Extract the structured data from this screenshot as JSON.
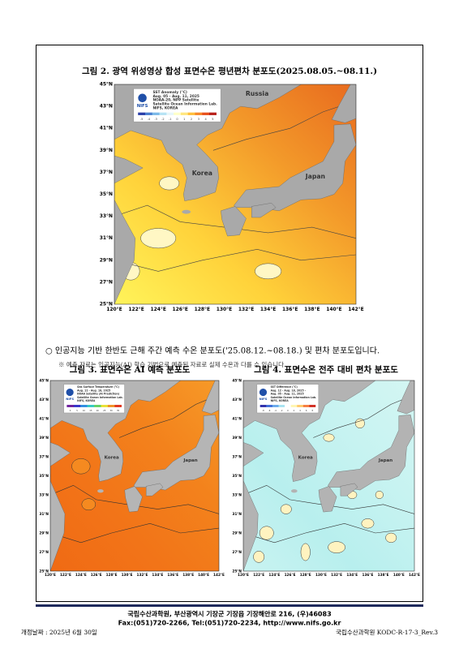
{
  "figure2": {
    "caption": "그림 2. 광역 위성영상 합성 표면수온 평년편차 분포도(2025.08.05.~08.11.)",
    "map": {
      "legend": [
        "SST Anomaly (°C)",
        "Aug. 05 - Aug. 11, 2025",
        "NOAA-20, NPP Satellite",
        "Satellite Ocean Information Lab.",
        "NIFS, KOREA"
      ],
      "logo": "NIFS",
      "scale": [
        "-5",
        "-4",
        "-3",
        "-2",
        "-1",
        "0",
        "1",
        "2",
        "3",
        "4",
        "5"
      ],
      "lat_labels": [
        "45°N",
        "43°N",
        "41°N",
        "39°N",
        "37°N",
        "35°N",
        "33°N",
        "31°N",
        "29°N",
        "27°N",
        "25°N"
      ],
      "lon_labels": [
        "120°E",
        "122°E",
        "124°E",
        "126°E",
        "128°E",
        "130°E",
        "132°E",
        "134°E",
        "136°E",
        "138°E",
        "140°E",
        "142°E"
      ],
      "places": [
        "Russia",
        "Korea",
        "Japan"
      ]
    }
  },
  "bullet": "○ 인공지능 기반 한반도 근해 주간 예측 수온 분포도('25.08.12.~08.18.) 및 편차 분포도입니다.",
  "note": "※ 예측 자료는 인공지능(AI) 학습 기법으로 예측된 자료로 실제 수온과 다를 수 있습니다.",
  "figure3": {
    "caption": "그림 3. 표면수온 AI 예측 분포도",
    "map": {
      "legend": [
        "Sea Surface Temperature (°C)",
        "Aug. 12 - Aug. 18, 2025",
        "NOAA Satellite (AI Prediction)",
        "Satellite Ocean Information Lab.",
        "NIFS, KOREA"
      ],
      "logo": "NIFS",
      "scale": [
        "0",
        "5",
        "10",
        "15",
        "20",
        "25",
        "30",
        "35"
      ],
      "lat_labels": [
        "45°N",
        "43°N",
        "41°N",
        "39°N",
        "37°N",
        "35°N",
        "33°N",
        "31°N",
        "29°N",
        "27°N",
        "25°N"
      ],
      "lon_labels": [
        "120°E",
        "122°E",
        "124°E",
        "126°E",
        "128°E",
        "130°E",
        "132°E",
        "134°E",
        "136°E",
        "138°E",
        "140°E",
        "142°E"
      ],
      "places": [
        "Korea",
        "Japan"
      ]
    }
  },
  "figure4": {
    "caption": "그림 4. 표면수온 전주 대비 편차 분포도",
    "map": {
      "legend": [
        "SST Difference (°C)",
        "Aug. 12 - Aug. 18, 2025 -",
        "Aug. 05 - Aug. 11, 2025",
        "Satellite Ocean Information Lab.",
        "NIFS, KOREA"
      ],
      "logo": "NIFS",
      "scale": [
        "-8",
        "-6",
        "-4",
        "-2",
        "0",
        "2",
        "4",
        "6",
        "8"
      ],
      "lat_labels": [
        "45°N",
        "43°N",
        "41°N",
        "39°N",
        "37°N",
        "35°N",
        "33°N",
        "31°N",
        "29°N",
        "27°N",
        "25°N"
      ],
      "lon_labels": [
        "120°E",
        "122°E",
        "124°E",
        "126°E",
        "128°E",
        "130°E",
        "132°E",
        "134°E",
        "136°E",
        "138°E",
        "140°E",
        "142°E"
      ],
      "places": [
        "Korea",
        "Japan"
      ]
    }
  },
  "footer": {
    "line1": "국립수산과학원, 부산광역시 기장군 기장읍 기장해안로 216, (우)46083",
    "line2": "Fax:(051)720-2266, Tel:(051)720-2234, http://www.nifs.go.kr"
  },
  "revision_date": "개정날짜 : 2025년 6월 30일",
  "doc_code": "국립수산과학원 KODC-R-17-3_Rev.3"
}
